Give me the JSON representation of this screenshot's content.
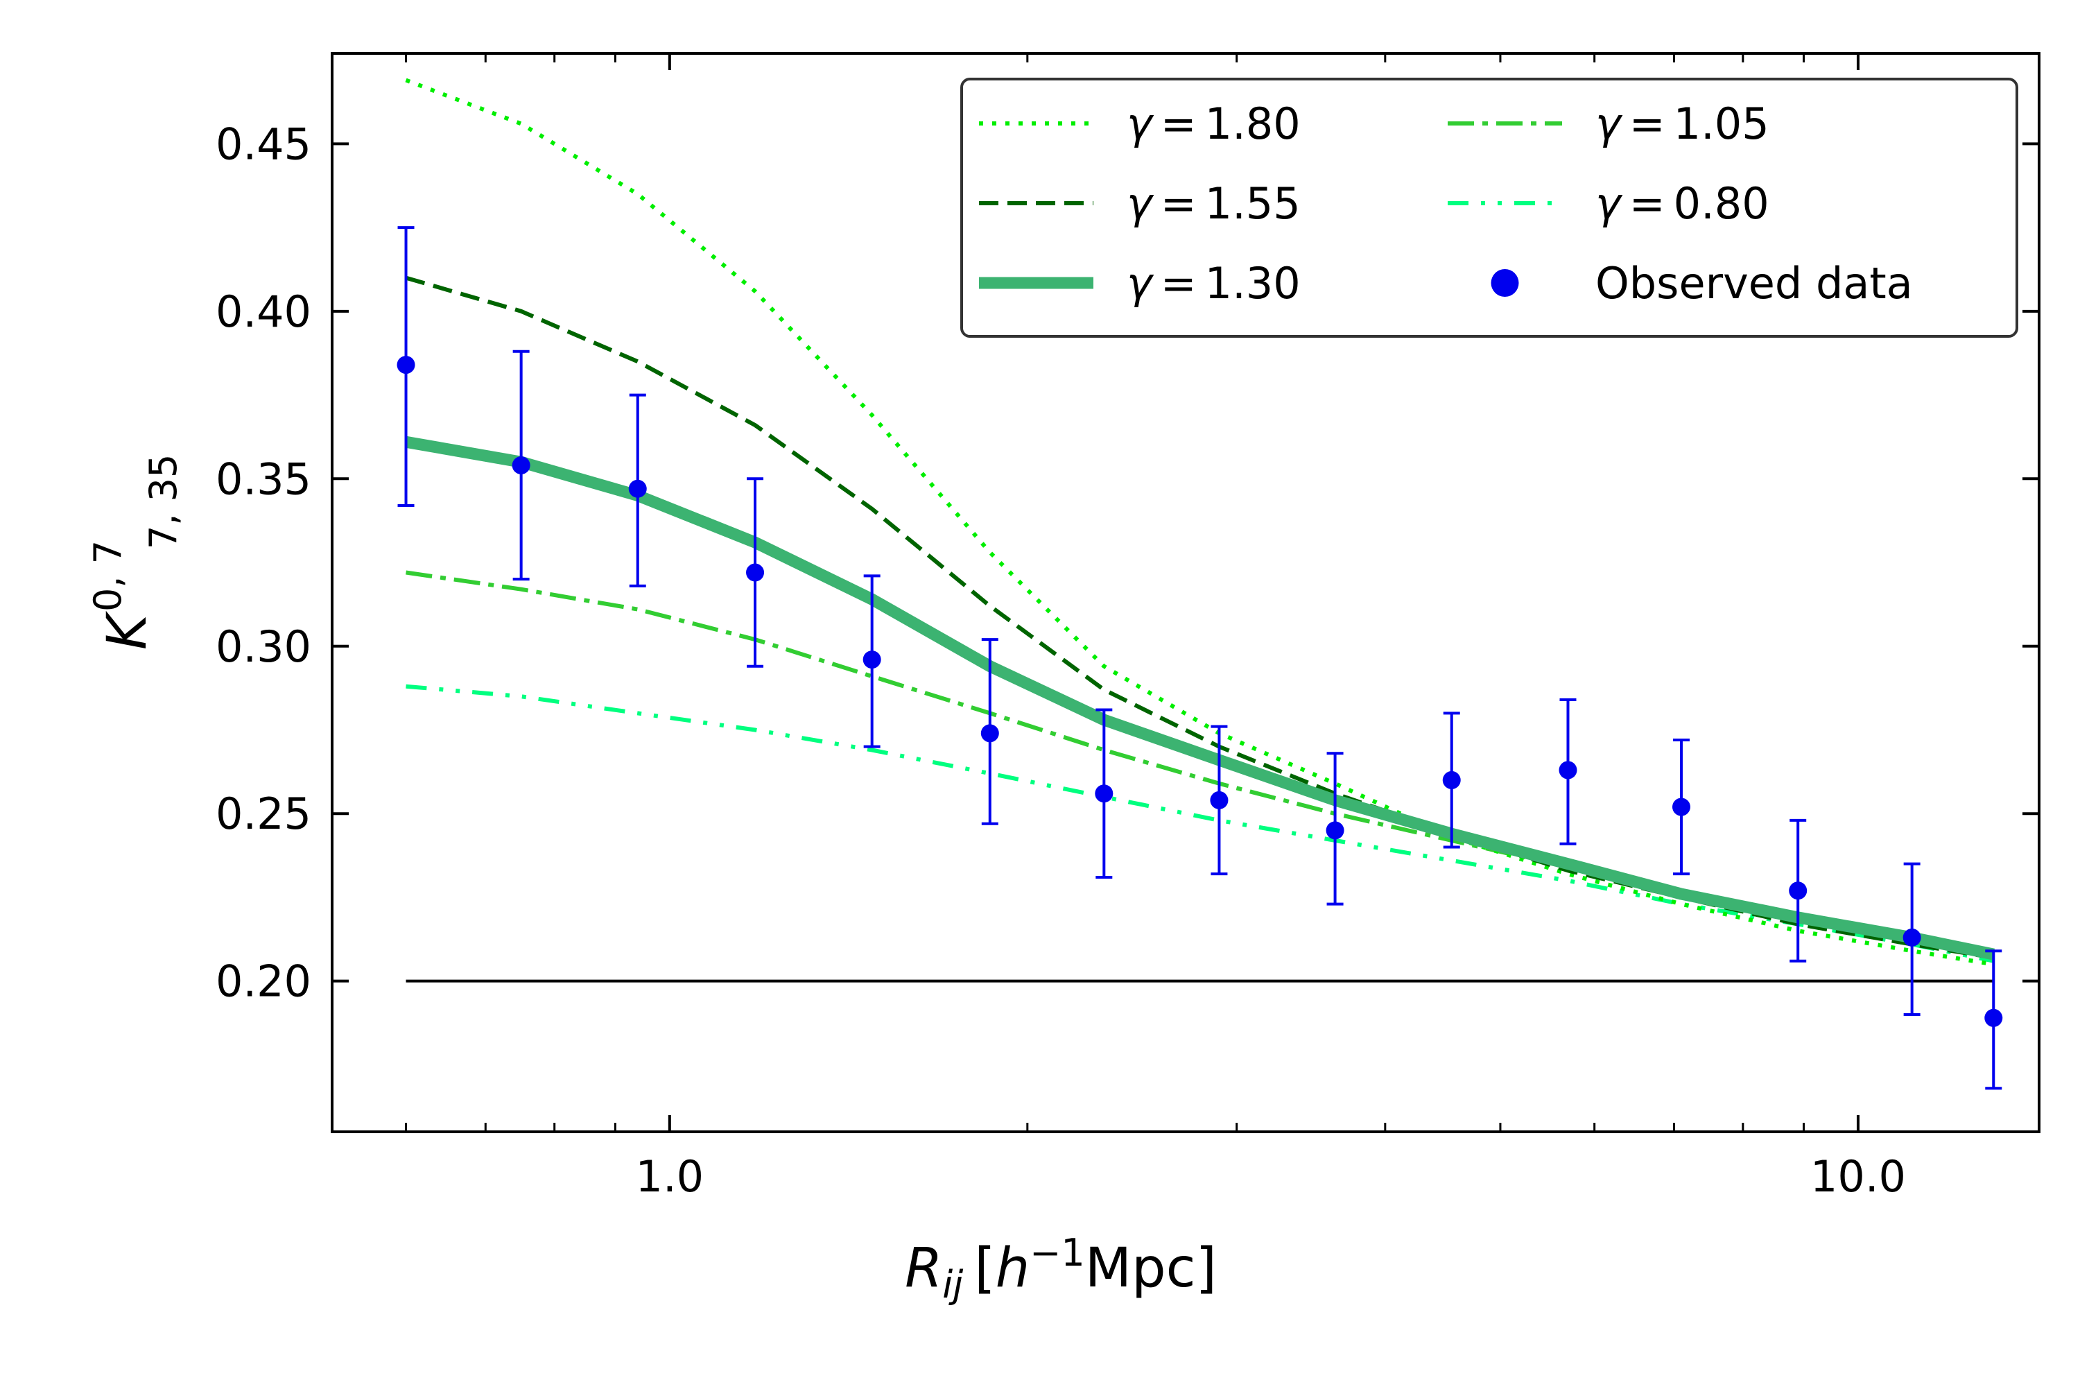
{
  "chart_data": {
    "type": "line",
    "title": "",
    "xscale": "log",
    "xlim": [
      0.52,
      14.2
    ],
    "ylim": [
      0.155,
      0.477
    ],
    "xlabel": {
      "main": "R",
      "main_sub": "ij",
      "bracket_open": "[",
      "unit_h": "h",
      "unit_exp": "−1",
      "unit_rest": "Mpc",
      "bracket_close": "]"
    },
    "ylabel": {
      "main": "K",
      "sup": "0, 7",
      "sub": "7, 35"
    },
    "xticks": [
      {
        "value": 1.0,
        "label": "1.0"
      },
      {
        "value": 10.0,
        "label": "10.0"
      }
    ],
    "yticks": [
      {
        "value": 0.2,
        "label": "0.20"
      },
      {
        "value": 0.25,
        "label": "0.25"
      },
      {
        "value": 0.3,
        "label": "0.30"
      },
      {
        "value": 0.35,
        "label": "0.35"
      },
      {
        "value": 0.4,
        "label": "0.40"
      },
      {
        "value": 0.45,
        "label": "0.45"
      }
    ],
    "minor_xticks": [
      0.6,
      0.7,
      0.8,
      0.9,
      2,
      3,
      4,
      5,
      6,
      7,
      8,
      9
    ],
    "x": [
      0.6,
      0.75,
      0.94,
      1.18,
      1.48,
      1.86,
      2.32,
      2.9,
      3.63,
      4.55,
      5.7,
      7.1,
      8.9,
      11.1,
      13.0
    ],
    "series": [
      {
        "name": "γ = 1.80",
        "gamma_text": "1.80",
        "color": "#00ee00",
        "style": "dotted",
        "width": 6,
        "values": [
          0.469,
          0.456,
          0.435,
          0.406,
          0.369,
          0.328,
          0.294,
          0.274,
          0.259,
          0.243,
          0.232,
          0.223,
          0.215,
          0.209,
          0.205
        ]
      },
      {
        "name": "γ = 1.55",
        "gamma_text": "1.55",
        "color": "#006400",
        "style": "dashed",
        "width": 6,
        "values": [
          0.41,
          0.4,
          0.385,
          0.366,
          0.341,
          0.312,
          0.287,
          0.27,
          0.256,
          0.244,
          0.233,
          0.225,
          0.217,
          0.211,
          0.207
        ]
      },
      {
        "name": "γ = 1.30",
        "gamma_text": "1.30",
        "color": "#3cb371",
        "style": "solid",
        "width": 17,
        "values": [
          0.361,
          0.355,
          0.345,
          0.331,
          0.314,
          0.294,
          0.278,
          0.266,
          0.254,
          0.244,
          0.235,
          0.226,
          0.219,
          0.213,
          0.208
        ]
      },
      {
        "name": "γ = 1.05",
        "gamma_text": "1.05",
        "color": "#32cd32",
        "style": "dashdot",
        "width": 6,
        "values": [
          0.322,
          0.317,
          0.311,
          0.302,
          0.291,
          0.28,
          0.269,
          0.259,
          0.25,
          0.242,
          0.234,
          0.225,
          0.218,
          0.212,
          0.207
        ]
      },
      {
        "name": "γ = 0.80",
        "gamma_text": "0.80",
        "color": "#00ff7f",
        "style": "dashdotdot",
        "width": 6,
        "values": [
          0.288,
          0.285,
          0.28,
          0.275,
          0.269,
          0.262,
          0.255,
          0.248,
          0.242,
          0.236,
          0.23,
          0.223,
          0.217,
          0.211,
          0.206
        ]
      }
    ],
    "observed": {
      "name": "Observed data",
      "color": "#0000ee",
      "values": [
        0.384,
        0.354,
        0.347,
        0.322,
        0.296,
        0.274,
        0.256,
        0.254,
        0.245,
        0.26,
        0.263,
        0.252,
        0.227,
        0.213,
        0.189
      ],
      "err_low": [
        0.342,
        0.32,
        0.318,
        0.294,
        0.27,
        0.247,
        0.231,
        0.232,
        0.223,
        0.24,
        0.241,
        0.232,
        0.206,
        0.19,
        0.168
      ],
      "err_high": [
        0.425,
        0.388,
        0.375,
        0.35,
        0.321,
        0.302,
        0.281,
        0.276,
        0.268,
        0.28,
        0.284,
        0.272,
        0.248,
        0.235,
        0.209
      ]
    },
    "reference_line": {
      "value": 0.2,
      "x_from": 0.6,
      "x_to": 13.0,
      "color": "#000000"
    },
    "legend": {
      "placement": "upper-right",
      "columns": 2,
      "gamma_symbol": "γ",
      "equals": "="
    }
  }
}
